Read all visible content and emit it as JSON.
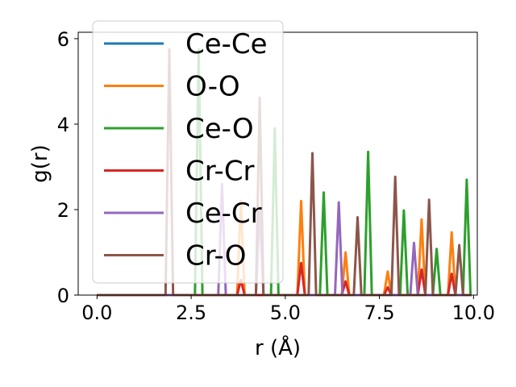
{
  "chart_data": {
    "type": "line",
    "title": "",
    "xlabel": "r (Å)",
    "ylabel": "g(r)",
    "xlim": [
      -0.5,
      10.1
    ],
    "ylim": [
      0,
      6.15
    ],
    "x_ticks": [
      "0.0",
      "2.5",
      "5.0",
      "7.5",
      "10.0"
    ],
    "x_tick_values": [
      0,
      2.5,
      5,
      7.5,
      10
    ],
    "y_ticks": [
      "0",
      "2",
      "4",
      "6"
    ],
    "y_tick_values": [
      0,
      2,
      4,
      6
    ],
    "grid": false,
    "legend_placement": "upper-left",
    "peak_halfwidth": 0.1,
    "series": [
      {
        "name": "Ce-Ce",
        "color": "#1f77b4",
        "peaks": []
      },
      {
        "name": "O-O",
        "color": "#ff7f0e",
        "peaks": [
          [
            3.82,
            2.2
          ],
          [
            5.42,
            2.2
          ],
          [
            6.6,
            1.0
          ],
          [
            7.72,
            0.55
          ],
          [
            8.62,
            1.77
          ],
          [
            9.42,
            1.47
          ]
        ]
      },
      {
        "name": "Ce-O",
        "color": "#2ca02c",
        "peaks": [
          [
            2.7,
            5.75
          ],
          [
            4.72,
            3.9
          ],
          [
            6.02,
            2.4
          ],
          [
            7.2,
            3.35
          ],
          [
            8.15,
            1.98
          ],
          [
            9.02,
            1.08
          ],
          [
            9.82,
            2.7
          ]
        ]
      },
      {
        "name": "Cr-Cr",
        "color": "#d62728",
        "peaks": [
          [
            3.82,
            0.35
          ],
          [
            5.42,
            0.75
          ],
          [
            6.6,
            0.32
          ],
          [
            7.72,
            0.18
          ],
          [
            8.62,
            0.6
          ],
          [
            9.42,
            0.5
          ]
        ]
      },
      {
        "name": "Ce-Cr",
        "color": "#9467bd",
        "peaks": [
          [
            3.32,
            2.6
          ],
          [
            4.32,
            2.02
          ],
          [
            6.42,
            2.17
          ],
          [
            8.42,
            1.22
          ]
        ]
      },
      {
        "name": "Cr-O",
        "color": "#8c564b",
        "peaks": [
          [
            1.92,
            5.75
          ],
          [
            4.32,
            4.62
          ],
          [
            5.72,
            3.32
          ],
          [
            6.92,
            1.82
          ],
          [
            7.92,
            2.77
          ],
          [
            8.82,
            2.23
          ],
          [
            9.62,
            1.17
          ]
        ]
      }
    ]
  }
}
